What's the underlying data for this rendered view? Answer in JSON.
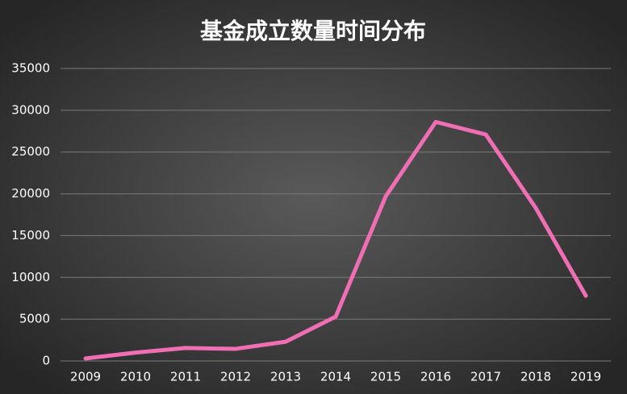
{
  "chart_data": {
    "type": "line",
    "title": "基金成立数量时间分布",
    "categories": [
      "2009",
      "2010",
      "2011",
      "2012",
      "2013",
      "2014",
      "2015",
      "2016",
      "2017",
      "2018",
      "2019"
    ],
    "values": [
      300,
      1000,
      1550,
      1450,
      2300,
      5300,
      19700,
      28600,
      27100,
      18300,
      7800
    ],
    "color": "#f06eb4",
    "ylim": [
      0,
      35000
    ],
    "yticks": [
      0,
      5000,
      10000,
      15000,
      20000,
      25000,
      30000,
      35000
    ],
    "grid": true
  }
}
